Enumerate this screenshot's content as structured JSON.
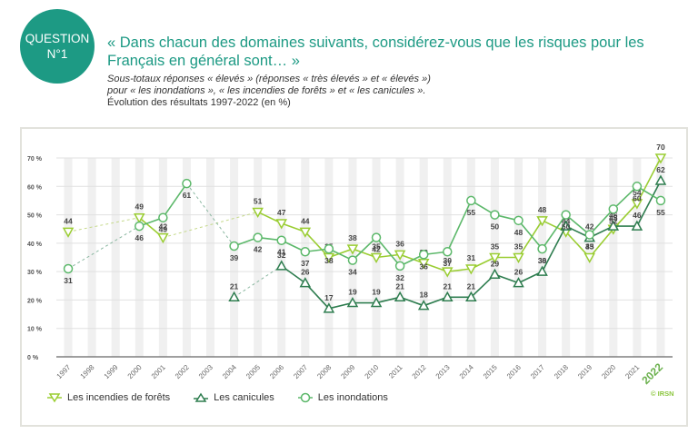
{
  "header": {
    "badge_line1": "QUESTION",
    "badge_line2": "N°1",
    "title": "« Dans chacun des domaines suivants, considérez-vous que les risques pour les Français en général sont… »",
    "subtitle_line1": "Sous-totaux réponses « élevés » (réponses « très élevés » et « élevés »)",
    "subtitle_line2": "pour « les inondations », « les incendies de forêts » et « les canicules ».",
    "subtitle_line3": "Évolution des résultats 1997-2022 (en %)"
  },
  "copyright": "© IRSN",
  "colors": {
    "brand": "#1d9a84",
    "incendies": "#9acd32",
    "canicules": "#2e7d4f",
    "inondations": "#5cb86a",
    "grid": "#e0e0e0",
    "band": "#f0f0f0",
    "highlight_year": "#6ab04c"
  },
  "chart_data": {
    "type": "line",
    "title": "« Dans chacun des domaines suivants, considérez-vous que les risques pour les Français en général sont… »",
    "xlabel": "",
    "ylabel": "",
    "ylim": [
      0,
      70
    ],
    "yticks": [
      0,
      10,
      20,
      30,
      40,
      50,
      60,
      70
    ],
    "ytick_labels": [
      "0 %",
      "10 %",
      "20 %",
      "30 %",
      "40 %",
      "50 %",
      "60 %",
      "70 %"
    ],
    "x": [
      "1997",
      "1998",
      "1999",
      "2000",
      "2001",
      "2002",
      "2003",
      "2004",
      "2005",
      "2006",
      "2007",
      "2008",
      "2009",
      "2010",
      "2011",
      "2012",
      "2013",
      "2014",
      "2015",
      "2016",
      "2017",
      "2018",
      "2019",
      "2020",
      "2021",
      "2022"
    ],
    "highlight_x": "2022",
    "grid": true,
    "legend_position": "bottom-left",
    "series": [
      {
        "name": "Les incendies de forêts",
        "key": "incendies",
        "marker": "triangle-down",
        "values": [
          44,
          null,
          null,
          49,
          42,
          null,
          null,
          null,
          51,
          47,
          44,
          35,
          38,
          35,
          36,
          33,
          30,
          31,
          35,
          35,
          48,
          44,
          35,
          45,
          54,
          70
        ]
      },
      {
        "name": "Les canicules",
        "key": "canicules",
        "marker": "triangle-up",
        "values": [
          null,
          null,
          null,
          null,
          null,
          null,
          null,
          21,
          null,
          32,
          26,
          17,
          19,
          19,
          21,
          18,
          21,
          21,
          29,
          26,
          30,
          46,
          42,
          46,
          46,
          62
        ]
      },
      {
        "name": "Les inondations",
        "key": "inondations",
        "marker": "circle",
        "values": [
          31,
          null,
          null,
          46,
          49,
          61,
          null,
          39,
          42,
          41,
          37,
          38,
          34,
          42,
          32,
          36,
          37,
          55,
          50,
          48,
          38,
          50,
          43,
          52,
          60,
          55
        ]
      }
    ]
  }
}
